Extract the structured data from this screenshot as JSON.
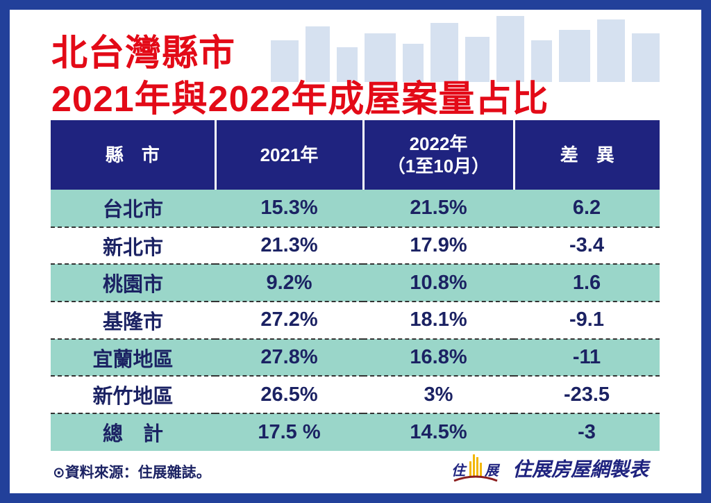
{
  "title": {
    "line1": "北台灣縣市",
    "line2": "2021年與2022年成屋案量占比"
  },
  "table": {
    "headers": [
      "縣　市",
      "2021年",
      "2022年\n（1至10月）",
      "差　異"
    ],
    "header_2022_line1": "2022年",
    "header_2022_line2": "（1至10月）",
    "rows": [
      [
        "台北市",
        "15.3%",
        "21.5%",
        "6.2"
      ],
      [
        "新北市",
        "21.3%",
        "17.9%",
        "-3.4"
      ],
      [
        "桃園市",
        "9.2%",
        "10.8%",
        "1.6"
      ],
      [
        "基隆市",
        "27.2%",
        "18.1%",
        "-9.1"
      ],
      [
        "宜蘭地區",
        "27.8%",
        "16.8%",
        "-11"
      ],
      [
        "新竹地區",
        "26.5%",
        "3%",
        "-23.5"
      ],
      [
        "總　計",
        "17.5 %",
        "14.5%",
        "-3"
      ]
    ]
  },
  "footer": {
    "source": "⊙資料來源：住展雜誌。",
    "brand_logo_text": "住展",
    "brand": "住展房屋網製表"
  },
  "colors": {
    "border": "#22409a",
    "title": "#e30a17",
    "header_bg": "#1f237f",
    "row_teal": "#9ad6c9",
    "text": "#1b2263"
  }
}
